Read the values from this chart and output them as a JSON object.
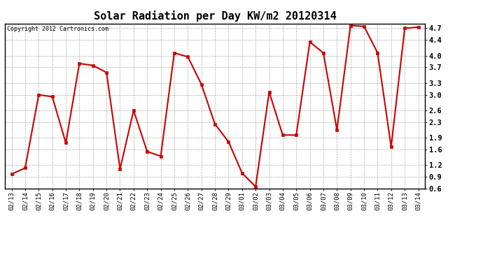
{
  "title": "Solar Radiation per Day KW/m2 20120314",
  "copyright_text": "Copyright 2012 Cartronics.com",
  "dates": [
    "02/13",
    "02/14",
    "02/15",
    "02/16",
    "02/17",
    "02/18",
    "02/19",
    "02/20",
    "02/21",
    "02/22",
    "02/23",
    "02/24",
    "02/25",
    "02/26",
    "02/27",
    "02/28",
    "02/29",
    "03/01",
    "03/02",
    "03/03",
    "03/04",
    "03/05",
    "03/06",
    "03/07",
    "03/08",
    "03/09",
    "03/10",
    "03/11",
    "03/12",
    "03/13",
    "03/14"
  ],
  "values": [
    0.97,
    1.13,
    3.0,
    2.95,
    1.77,
    3.8,
    3.75,
    3.57,
    1.1,
    2.6,
    1.55,
    1.43,
    4.07,
    3.97,
    3.27,
    2.25,
    1.8,
    1.0,
    0.65,
    3.07,
    1.97,
    1.97,
    4.35,
    4.07,
    2.1,
    4.77,
    4.75,
    4.07,
    1.67,
    4.7,
    4.73
  ],
  "line_color": "#cc0000",
  "marker": "s",
  "marker_size": 3,
  "marker_color": "#cc0000",
  "line_width": 1.5,
  "ylim": [
    0.6,
    4.82
  ],
  "yticks": [
    0.6,
    0.9,
    1.2,
    1.6,
    1.9,
    2.3,
    2.6,
    3.0,
    3.3,
    3.7,
    4.0,
    4.4,
    4.7
  ],
  "bg_color": "#ffffff",
  "plot_bg_color": "#ffffff",
  "grid_color": "#999999",
  "title_fontsize": 11,
  "tick_fontsize": 6.5,
  "copyright_fontsize": 6
}
